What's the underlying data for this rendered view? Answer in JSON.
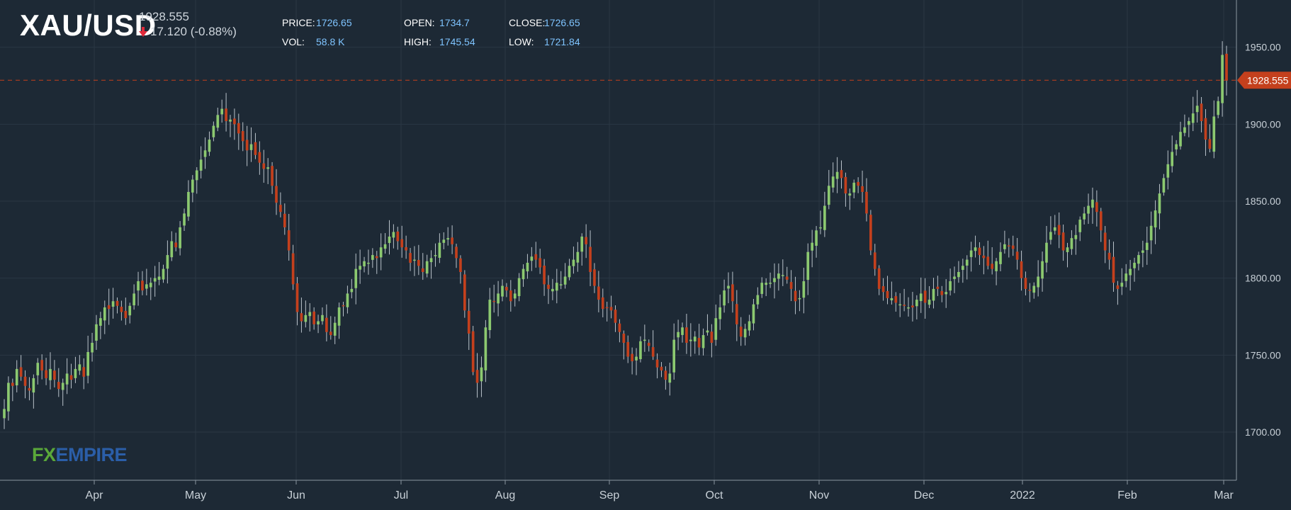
{
  "header": {
    "symbol": "XAU/USD",
    "last_price": "1928.555",
    "change": "17.120 (-0.88%)",
    "change_direction": "down",
    "stats": {
      "price_label": "PRICE:",
      "price_value": "1726.65",
      "open_label": "OPEN:",
      "open_value": "1734.7",
      "close_label": "CLOSE:",
      "close_value": "1726.65",
      "vol_label": "VOL:",
      "vol_value": "58.8 K",
      "high_label": "HIGH:",
      "high_value": "1745.54",
      "low_label": "LOW:",
      "low_value": "1721.84"
    }
  },
  "logo": {
    "part1": "FX",
    "part2": "EMPIRE"
  },
  "colors": {
    "background": "#1d2935",
    "grid": "#2a3744",
    "up": "#8cc970",
    "down": "#c4401d",
    "wick": "#b9c2ca",
    "price_line": "#c4401d",
    "axis_text": "#c8d0d7"
  },
  "chart_data": {
    "type": "candlestick",
    "y_ticks": [
      "1700.00",
      "1750.00",
      "1800.00",
      "1850.00",
      "1900.00",
      "1950.00"
    ],
    "x_tick_labels": [
      "Apr",
      "May",
      "Jun",
      "Jul",
      "Aug",
      "Sep",
      "Oct",
      "Nov",
      "Dec",
      "2022",
      "Feb",
      "Mar"
    ],
    "current_price": 1928.555,
    "current_price_label": "1928.555",
    "grid": true,
    "series_close": [
      1715,
      1732,
      1730,
      1741,
      1736,
      1730,
      1727,
      1735,
      1745,
      1740,
      1735,
      1741,
      1734,
      1728,
      1732,
      1738,
      1734,
      1741,
      1744,
      1736,
      1752,
      1758,
      1770,
      1774,
      1781,
      1780,
      1785,
      1782,
      1778,
      1774,
      1782,
      1790,
      1798,
      1792,
      1796,
      1797,
      1800,
      1801,
      1806,
      1815,
      1824,
      1820,
      1833,
      1842,
      1856,
      1864,
      1870,
      1877,
      1883,
      1890,
      1899,
      1906,
      1910,
      1902,
      1903,
      1900,
      1894,
      1889,
      1883,
      1887,
      1880,
      1875,
      1871,
      1872,
      1860,
      1849,
      1843,
      1833,
      1818,
      1796,
      1778,
      1772,
      1776,
      1778,
      1770,
      1772,
      1776,
      1765,
      1763,
      1771,
      1781,
      1782,
      1790,
      1793,
      1806,
      1808,
      1811,
      1810,
      1815,
      1813,
      1820,
      1822,
      1827,
      1830,
      1824,
      1820,
      1818,
      1810,
      1812,
      1808,
      1804,
      1811,
      1813,
      1815,
      1823,
      1825,
      1826,
      1822,
      1813,
      1804,
      1779,
      1764,
      1739,
      1732,
      1742,
      1768,
      1786,
      1785,
      1790,
      1795,
      1792,
      1785,
      1790,
      1800,
      1806,
      1810,
      1814,
      1812,
      1807,
      1796,
      1793,
      1793,
      1797,
      1796,
      1801,
      1808,
      1812,
      1817,
      1827,
      1822,
      1804,
      1795,
      1786,
      1780,
      1781,
      1779,
      1771,
      1765,
      1758,
      1749,
      1746,
      1749,
      1759,
      1760,
      1756,
      1749,
      1742,
      1740,
      1734,
      1738,
      1760,
      1765,
      1768,
      1758,
      1760,
      1762,
      1755,
      1763,
      1766,
      1758,
      1774,
      1781,
      1792,
      1795,
      1785,
      1770,
      1762,
      1767,
      1772,
      1783,
      1789,
      1797,
      1797,
      1797,
      1800,
      1803,
      1802,
      1799,
      1793,
      1785,
      1787,
      1798,
      1817,
      1823,
      1831,
      1833,
      1847,
      1860,
      1866,
      1869,
      1865,
      1855,
      1855,
      1862,
      1860,
      1856,
      1842,
      1818,
      1806,
      1793,
      1791,
      1787,
      1787,
      1784,
      1783,
      1782,
      1781,
      1781,
      1786,
      1790,
      1784,
      1786,
      1793,
      1793,
      1789,
      1791,
      1798,
      1801,
      1804,
      1808,
      1812,
      1818,
      1820,
      1815,
      1813,
      1808,
      1806,
      1811,
      1817,
      1822,
      1821,
      1819,
      1812,
      1800,
      1793,
      1792,
      1795,
      1801,
      1811,
      1823,
      1830,
      1833,
      1828,
      1818,
      1820,
      1826,
      1828,
      1838,
      1842,
      1847,
      1851,
      1843,
      1831,
      1818,
      1812,
      1797,
      1793,
      1797,
      1803,
      1806,
      1810,
      1815,
      1818,
      1823,
      1834,
      1844,
      1855,
      1865,
      1874,
      1882,
      1887,
      1895,
      1898,
      1902,
      1907,
      1912,
      1902,
      1890,
      1884,
      1905,
      1915,
      1945,
      1928.555
    ]
  }
}
